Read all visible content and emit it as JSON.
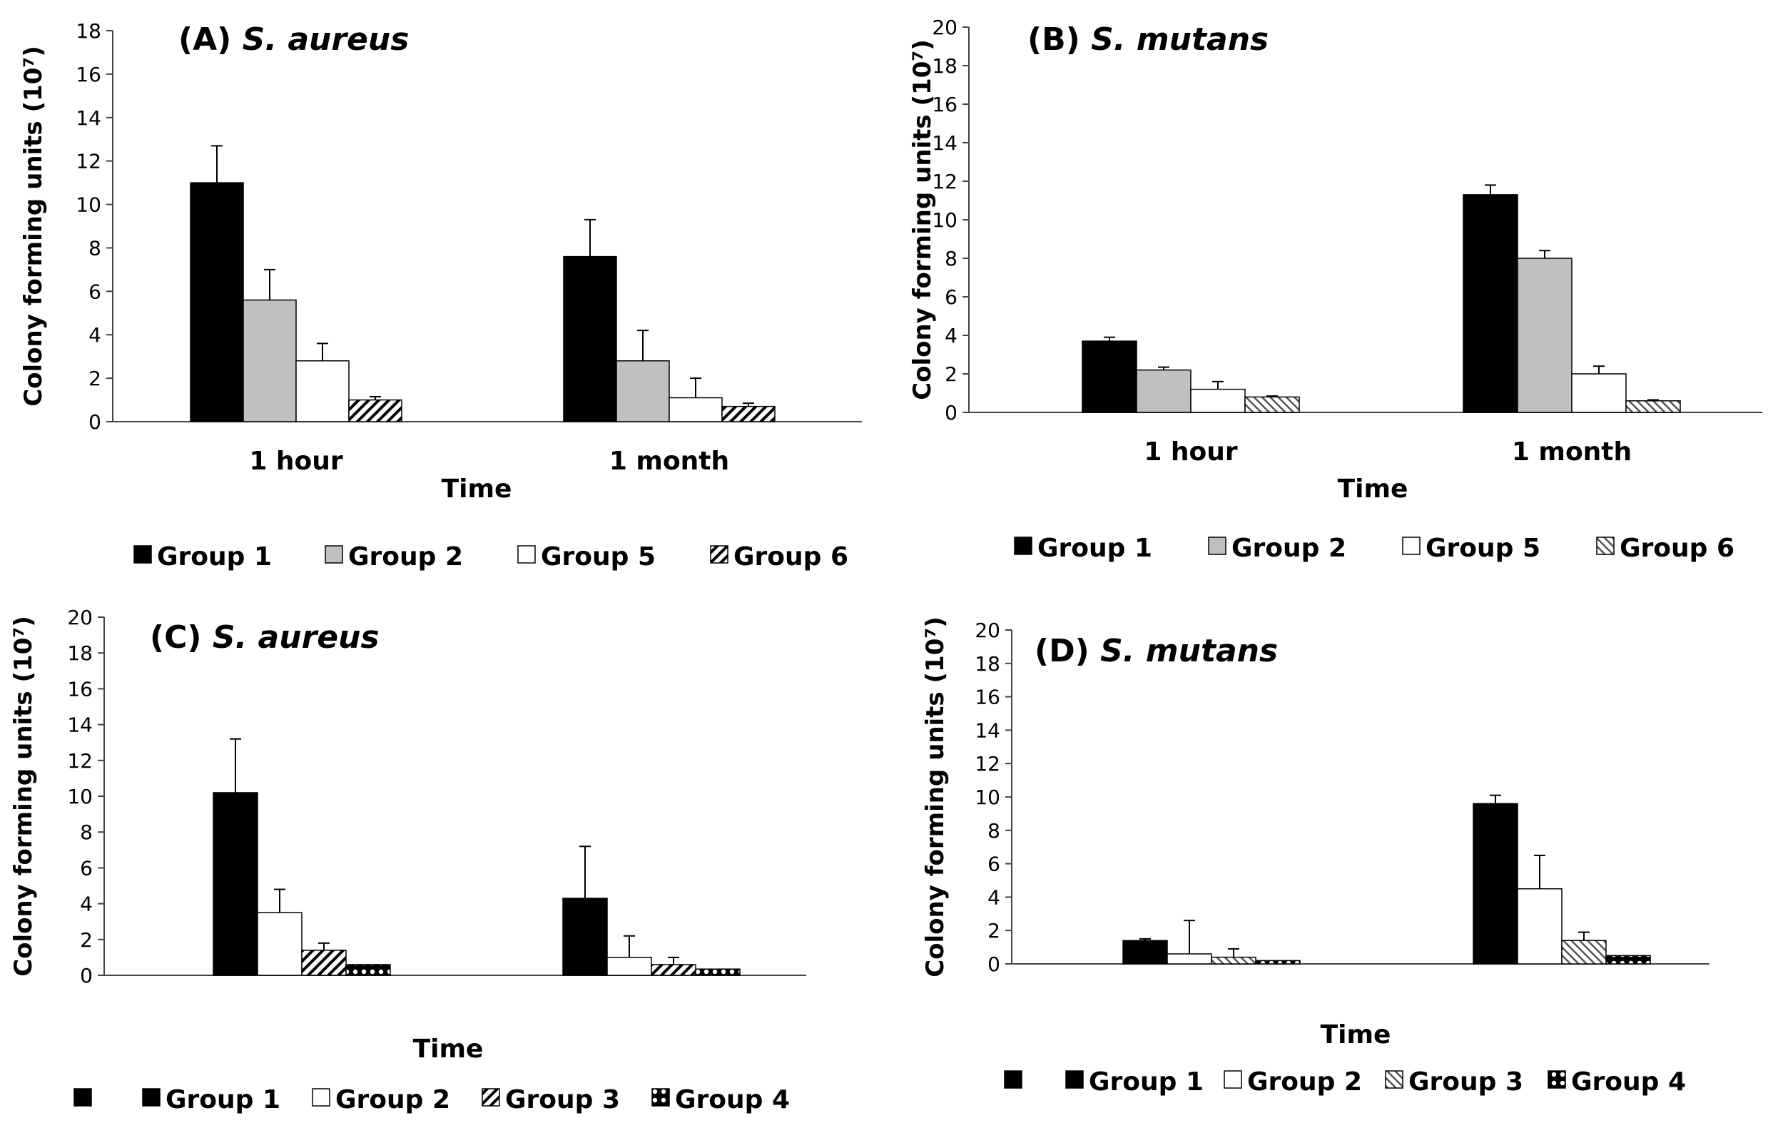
{
  "chart_data": [
    {
      "type": "bar",
      "title": "(A) S. aureus",
      "xlabel": "Time",
      "ylabel": "Colony forming units (10⁷)",
      "ylim": [
        0,
        18
      ],
      "yticks": [
        0,
        2,
        4,
        6,
        8,
        10,
        12,
        14,
        16,
        18
      ],
      "categories": [
        "1 hour",
        "1 month"
      ],
      "legend_position": "bottom",
      "series": [
        {
          "name": "Group 1",
          "pattern": "solid-black",
          "values": [
            11.0,
            7.6
          ],
          "errors": [
            1.7,
            1.7
          ]
        },
        {
          "name": "Group 2",
          "pattern": "solid-gray",
          "values": [
            5.6,
            2.8
          ],
          "errors": [
            1.4,
            1.4
          ]
        },
        {
          "name": "Group 5",
          "pattern": "white",
          "values": [
            2.8,
            1.1
          ],
          "errors": [
            0.8,
            0.9
          ]
        },
        {
          "name": "Group 6",
          "pattern": "wide-diagonal-hatch",
          "values": [
            1.0,
            0.7
          ],
          "errors": [
            0.15,
            0.15
          ]
        }
      ]
    },
    {
      "type": "bar",
      "title": "(B) S. mutans",
      "xlabel": "Time",
      "ylabel": "Colony forming units (10⁷)",
      "ylim": [
        0,
        20
      ],
      "yticks": [
        0,
        2,
        4,
        6,
        8,
        10,
        12,
        14,
        16,
        18,
        20
      ],
      "categories": [
        "1 hour",
        "1 month"
      ],
      "legend_position": "bottom",
      "series": [
        {
          "name": "Group 1",
          "pattern": "solid-black",
          "values": [
            3.7,
            11.3
          ],
          "errors": [
            0.2,
            0.5
          ]
        },
        {
          "name": "Group 2",
          "pattern": "solid-gray",
          "values": [
            2.2,
            8.0
          ],
          "errors": [
            0.15,
            0.4
          ]
        },
        {
          "name": "Group 5",
          "pattern": "white",
          "values": [
            1.2,
            2.0
          ],
          "errors": [
            0.4,
            0.4
          ]
        },
        {
          "name": "Group 6",
          "pattern": "light-diagonal-hatch",
          "values": [
            0.8,
            0.6
          ],
          "errors": [
            0.05,
            0.05
          ]
        }
      ]
    },
    {
      "type": "bar",
      "title": "(C) S. aureus",
      "xlabel": "Time",
      "ylabel": "Colony forming units (10⁷)",
      "ylim": [
        0,
        20
      ],
      "yticks": [
        0,
        2,
        4,
        6,
        8,
        10,
        12,
        14,
        16,
        18,
        20
      ],
      "categories": [
        "",
        ""
      ],
      "legend_position": "bottom",
      "legend_leading_swatch": true,
      "series": [
        {
          "name": "Group 1",
          "pattern": "solid-black",
          "values": [
            10.2,
            4.3
          ],
          "errors": [
            3.0,
            2.9
          ]
        },
        {
          "name": "Group 2",
          "pattern": "white",
          "values": [
            3.5,
            1.0
          ],
          "errors": [
            1.3,
            1.2
          ]
        },
        {
          "name": "Group 3",
          "pattern": "wide-diagonal-hatch",
          "values": [
            1.4,
            0.6
          ],
          "errors": [
            0.4,
            0.4
          ]
        },
        {
          "name": "Group 4",
          "pattern": "checker",
          "values": [
            0.6,
            0.35
          ],
          "errors": [
            0.0,
            0.0
          ]
        }
      ]
    },
    {
      "type": "bar",
      "title": "(D) S. mutans",
      "xlabel": "Time",
      "ylabel": "Colony forming units (10⁷)",
      "ylim": [
        0,
        20
      ],
      "yticks": [
        0,
        2,
        4,
        6,
        8,
        10,
        12,
        14,
        16,
        18,
        20
      ],
      "categories": [
        "",
        ""
      ],
      "legend_position": "bottom",
      "legend_leading_swatch": true,
      "series": [
        {
          "name": "Group 1",
          "pattern": "solid-black",
          "values": [
            1.4,
            9.6
          ],
          "errors": [
            0.1,
            0.5
          ]
        },
        {
          "name": "Group 2",
          "pattern": "white",
          "values": [
            0.6,
            4.5
          ],
          "errors": [
            2.0,
            2.0
          ]
        },
        {
          "name": "Group 3",
          "pattern": "light-diagonal-hatch",
          "values": [
            0.4,
            1.4
          ],
          "errors": [
            0.5,
            0.5
          ]
        },
        {
          "name": "Group 4",
          "pattern": "checker",
          "values": [
            0.2,
            0.5
          ],
          "errors": [
            0.0,
            0.0
          ]
        }
      ]
    }
  ]
}
